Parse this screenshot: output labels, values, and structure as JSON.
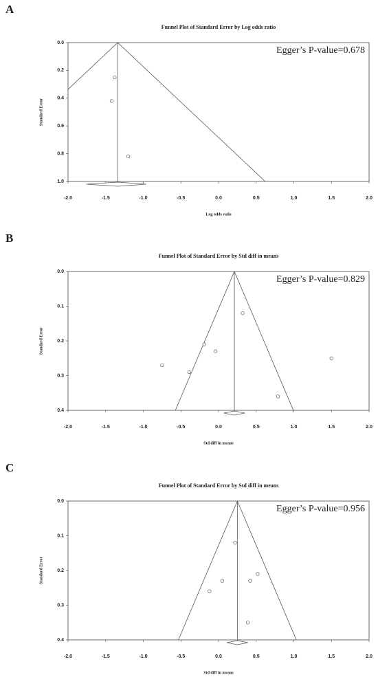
{
  "chart_data": [
    {
      "type": "scatter",
      "panel_label": "A",
      "title": "Funnel Plot of Standard Error by Log odds ratio",
      "x_label": "Log odds ratio",
      "y_label": "Standard Error",
      "annotation": "Egger’s P-value=0.678",
      "x": [
        -1.38,
        -1.42,
        -1.2
      ],
      "y": [
        0.25,
        0.42,
        0.82
      ],
      "pooled_estimate": -1.34,
      "pooled_ci": [
        -1.76,
        -0.96
      ],
      "xlim": [
        -2,
        2
      ],
      "ylim": [
        0,
        1
      ],
      "y_inverted": true,
      "color": "#555555",
      "xticks": [
        {
          "value": -2,
          "label": "-2.0"
        },
        -1.5,
        {
          "value": -1,
          "label": "-1.0"
        },
        -0.5,
        {
          "value": 0,
          "label": "0.0"
        },
        0.5,
        {
          "value": 1,
          "label": "1.0"
        },
        1.5,
        {
          "value": 2,
          "label": "2.0"
        }
      ],
      "yticks": [
        {
          "value": 0,
          "label": "0.0"
        },
        0.2,
        0.4,
        0.6,
        0.8,
        {
          "value": 1,
          "label": "1.0"
        }
      ]
    },
    {
      "type": "scatter",
      "panel_label": "B",
      "title": "Funnel Plot of Standard Error by Std diff in means",
      "x_label": "Std diff in means",
      "y_label": "Standard Error",
      "annotation": "Egger’s P-value=0.829",
      "x": [
        0.32,
        -0.19,
        -0.04,
        -0.75,
        -0.39,
        1.5,
        0.79
      ],
      "y": [
        0.12,
        0.21,
        0.23,
        0.27,
        0.29,
        0.25,
        0.36
      ],
      "pooled_estimate": 0.21,
      "pooled_ci": [
        0.07,
        0.35
      ],
      "xlim": [
        -2,
        2
      ],
      "ylim": [
        0,
        0.4
      ],
      "y_inverted": true,
      "color": "#555555",
      "xticks": [
        {
          "value": -2,
          "label": "-2.0"
        },
        -1.5,
        {
          "value": -1,
          "label": "-1.0"
        },
        -0.5,
        {
          "value": 0,
          "label": "0.0"
        },
        0.5,
        {
          "value": 1,
          "label": "1.0"
        },
        1.5,
        {
          "value": 2,
          "label": "2.0"
        }
      ],
      "yticks": [
        {
          "value": 0,
          "label": "0.0"
        },
        0.1,
        0.2,
        0.3,
        0.4
      ]
    },
    {
      "type": "scatter",
      "panel_label": "C",
      "title": "Funnel Plot of Standard Error by Std diff in means",
      "x_label": "Std diff in means",
      "y_label": "Standard Error",
      "annotation": "Egger’s P-value=0.956",
      "x": [
        0.22,
        0.52,
        0.05,
        0.42,
        -0.12,
        0.39
      ],
      "y": [
        0.12,
        0.21,
        0.23,
        0.23,
        0.26,
        0.35
      ],
      "pooled_estimate": 0.25,
      "pooled_ci": [
        0.11,
        0.39
      ],
      "xlim": [
        -2,
        2
      ],
      "ylim": [
        0,
        0.4
      ],
      "y_inverted": true,
      "color": "#555555",
      "xticks": [
        {
          "value": -2,
          "label": "-2.0"
        },
        -1.5,
        {
          "value": -1,
          "label": "-1.0"
        },
        -0.5,
        {
          "value": 0,
          "label": "0.0"
        },
        0.5,
        {
          "value": 1,
          "label": "1.0"
        },
        1.5,
        {
          "value": 2,
          "label": "2.0"
        }
      ],
      "yticks": [
        {
          "value": 0,
          "label": "0.0"
        },
        0.1,
        0.2,
        0.3,
        0.4
      ]
    }
  ]
}
